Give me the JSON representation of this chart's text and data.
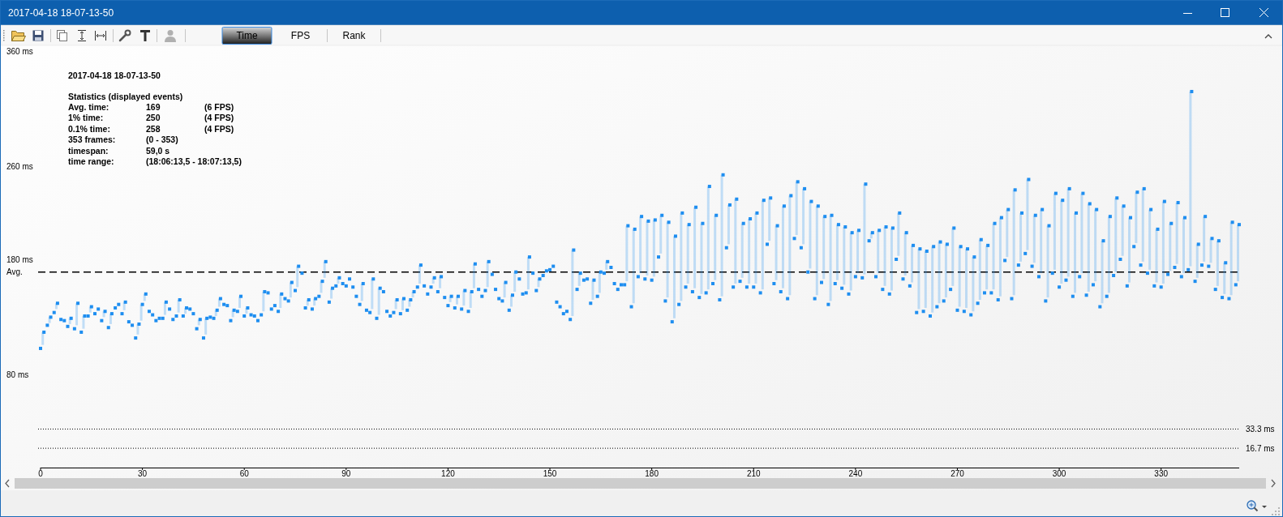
{
  "chart_data": {
    "type": "scatter",
    "title": "2017-04-18 18-07-13-50",
    "subtitle": "Statistics (displayed events)",
    "annotations": [
      "Avg. time:\t169\t(6 FPS)",
      "1% time:\t250\t(4 FPS)",
      "0.1% time:\t258\t(4 FPS)",
      "353 frames:\t(0 - 353)",
      "timespan:\t59,0 s",
      "time range:\t(18:06:13,5 - 18:07:13,5)",
      "2017-04-18 18-07-13-50",
      "Time",
      "FPS",
      "Rank"
    ],
    "x": [
      0,
      1,
      2,
      3,
      4,
      5,
      6,
      7,
      8,
      9,
      10,
      11,
      12,
      13,
      14,
      15,
      16,
      17,
      18,
      19,
      20,
      21,
      22,
      23,
      24,
      25,
      26,
      27,
      28,
      29,
      30,
      31,
      32,
      33,
      34,
      35,
      36,
      37,
      38,
      39,
      40,
      41,
      42,
      43,
      44,
      45,
      46,
      47,
      48,
      49,
      50,
      51,
      52,
      53,
      54,
      55,
      56,
      57,
      58,
      59,
      60,
      61,
      62,
      63,
      64,
      65,
      66,
      67,
      68,
      69,
      70,
      71,
      72,
      73,
      74,
      75,
      76,
      77,
      78,
      79,
      80,
      81,
      82,
      83,
      84,
      85,
      86,
      87,
      88,
      89,
      90,
      91,
      92,
      93,
      94,
      95,
      96,
      97,
      98,
      99,
      100,
      101,
      102,
      103,
      104,
      105,
      106,
      107,
      108,
      109,
      110,
      111,
      112,
      113,
      114,
      115,
      116,
      117,
      118,
      119,
      120,
      121,
      122,
      123,
      124,
      125,
      126,
      127,
      128,
      129,
      130,
      131,
      132,
      133,
      134,
      135,
      136,
      137,
      138,
      139,
      140,
      141,
      142,
      143,
      144,
      145,
      146,
      147,
      148,
      149,
      150,
      151,
      152,
      153,
      154,
      155,
      156,
      157,
      158,
      159,
      160,
      161,
      162,
      163,
      164,
      165,
      166,
      167,
      168,
      169,
      170,
      171,
      172,
      173,
      174,
      175,
      176,
      177,
      178,
      179,
      180,
      181,
      182,
      183,
      184,
      185,
      186,
      187,
      188,
      189,
      190,
      191,
      192,
      193,
      194,
      195,
      196,
      197,
      198,
      199,
      200,
      201,
      202,
      203,
      204,
      205,
      206,
      207,
      208,
      209,
      210,
      211,
      212,
      213,
      214,
      215,
      216,
      217,
      218,
      219,
      220,
      221,
      222,
      223,
      224,
      225,
      226,
      227,
      228,
      229,
      230,
      231,
      232,
      233,
      234,
      235,
      236,
      237,
      238,
      239,
      240,
      241,
      242,
      243,
      244,
      245,
      246,
      247,
      248,
      249,
      250,
      251,
      252,
      253,
      254,
      255,
      256,
      257,
      258,
      259,
      260,
      261,
      262,
      263,
      264,
      265,
      266,
      267,
      268,
      269,
      270,
      271,
      272,
      273,
      274,
      275,
      276,
      277,
      278,
      279,
      280,
      281,
      282,
      283,
      284,
      285,
      286,
      287,
      288,
      289,
      290,
      291,
      292,
      293,
      294,
      295,
      296,
      297,
      298,
      299,
      300,
      301,
      302,
      303,
      304,
      305,
      306,
      307,
      308,
      309,
      310,
      311,
      312,
      313,
      314,
      315,
      316,
      317,
      318,
      319,
      320,
      321,
      322,
      323,
      324,
      325,
      326,
      327,
      328,
      329,
      330,
      331,
      332,
      333,
      334,
      335,
      336,
      337,
      338,
      339,
      340,
      341,
      342,
      343,
      344,
      345,
      346,
      347,
      348,
      349,
      350,
      351,
      352,
      353
    ],
    "series": [
      {
        "color": "#1e8ef0",
        "values": [
          103,
          117,
          123,
          130,
          134,
          142,
          128,
          127,
          122,
          129,
          120,
          142,
          117,
          131,
          131,
          139,
          133,
          137,
          127,
          135,
          121,
          133,
          138,
          141,
          133,
          143,
          126,
          123,
          112,
          124,
          141,
          150,
          135,
          132,
          127,
          129,
          129,
          143,
          137,
          128,
          131,
          145,
          131,
          138,
          137,
          133,
          120,
          128,
          112,
          129,
          130,
          129,
          136,
          146,
          141,
          140,
          127,
          136,
          135,
          148,
          131,
          138,
          132,
          131,
          127,
          132,
          152,
          151,
          137,
          140,
          135,
          150,
          146,
          144,
          160,
          153,
          174,
          168,
          138,
          145,
          137,
          146,
          148,
          161,
          178,
          143,
          155,
          157,
          164,
          159,
          157,
          163,
          156,
          148,
          141,
          159,
          136,
          134,
          163,
          129,
          155,
          152,
          135,
          131,
          134,
          145,
          133,
          146,
          136,
          145,
          152,
          156,
          175,
          157,
          150,
          156,
          164,
          152,
          165,
          147,
          140,
          148,
          138,
          148,
          137,
          153,
          135,
          152,
          176,
          154,
          148,
          153,
          178,
          167,
          154,
          146,
          144,
          160,
          136,
          149,
          169,
          163,
          150,
          151,
          182,
          168,
          153,
          163,
          166,
          170,
          171,
          174,
          143,
          139,
          133,
          135,
          128,
          188,
          154,
          168,
          162,
          163,
          142,
          162,
          148,
          169,
          168,
          178,
          173,
          159,
          154,
          158,
          158,
          209,
          139,
          206,
          165,
          217,
          163,
          213,
          162,
          214,
          182,
          218,
          144,
          212,
          126,
          200,
          141,
          220,
          156,
          210,
          152,
          225,
          147,
          211,
          151,
          243,
          159,
          218,
          145,
          253,
          190,
          227,
          156,
          232,
          161,
          211,
          156,
          215,
          156,
          220,
          151,
          231,
          193,
          233,
          159,
          209,
          152,
          226,
          146,
          235,
          198,
          247,
          190,
          241,
          169,
          230,
          146,
          226,
          160,
          217,
          141,
          218,
          159,
          210,
          155,
          208,
          150,
          203,
          165,
          205,
          164,
          245,
          196,
          203,
          165,
          205,
          154,
          208,
          150,
          207,
          180,
          220,
          163,
          203,
          157,
          192,
          134,
          189,
          135,
          187,
          131,
          191,
          139,
          195,
          144,
          193,
          154,
          207,
          136,
          191,
          135,
          189,
          132,
          182,
          142,
          197,
          151,
          192,
          151,
          211,
          145,
          216,
          179,
          223,
          146,
          240,
          175,
          220,
          185,
          249,
          174,
          218,
          165,
          223,
          144,
          209,
          168,
          237,
          156,
          231,
          162,
          241,
          148,
          220,
          165,
          237,
          149,
          228,
          158,
          223,
          139,
          196,
          148,
          217,
          166,
          233,
          180,
          226,
          157,
          216,
          191,
          238,
          175,
          241,
          168,
          223,
          157,
          206,
          156,
          230,
          167,
          211,
          173,
          229,
          165,
          216,
          171,
          325,
          161,
          193,
          175,
          217,
          174,
          198,
          154,
          196,
          147,
          177,
          146,
          212,
          158,
          210
        ],
        "errors": [
          null,
          [
            106,
            117
          ],
          null,
          [
            125,
            130
          ],
          null,
          [
            137,
            142
          ],
          null,
          null,
          null,
          [
            124,
            129
          ],
          null,
          [
            123,
            142
          ],
          null,
          [
            120,
            131
          ],
          null,
          [
            134,
            139
          ],
          null,
          null,
          null,
          [
            130,
            135
          ],
          null,
          [
            124,
            133
          ],
          null,
          null,
          null,
          [
            136,
            143
          ],
          null,
          null,
          null,
          [
            115,
            124
          ],
          [
            127,
            141
          ],
          [
            144,
            150
          ],
          null,
          null,
          null,
          null,
          null,
          [
            132,
            143
          ],
          null,
          null,
          null,
          [
            134,
            145
          ],
          null,
          [
            133,
            138
          ],
          null,
          null,
          null,
          [
            123,
            128
          ],
          null,
          [
            115,
            129
          ],
          null,
          null,
          [
            131,
            136
          ],
          [
            139,
            146
          ],
          null,
          null,
          null,
          [
            130,
            136
          ],
          null,
          [
            138,
            148
          ],
          null,
          [
            133,
            138
          ],
          null,
          null,
          null,
          null,
          [
            135,
            152
          ],
          null,
          null,
          null,
          null,
          [
            138,
            150
          ],
          null,
          null,
          [
            147,
            160
          ],
          null,
          [
            156,
            174
          ],
          null,
          null,
          [
            140,
            145
          ],
          null,
          [
            140,
            146
          ],
          null,
          [
            151,
            161
          ],
          [
            164,
            178
          ],
          null,
          [
            146,
            155
          ],
          null,
          [
            159,
            164
          ],
          null,
          null,
          null,
          null,
          null,
          null,
          [
            144,
            159
          ],
          null,
          null,
          [
            137,
            163
          ],
          null,
          [
            132,
            155
          ],
          null,
          null,
          null,
          null,
          [
            137,
            145
          ],
          null,
          [
            136,
            146
          ],
          null,
          [
            139,
            145
          ],
          [
            147,
            152
          ],
          null,
          [
            159,
            175
          ],
          null,
          null,
          null,
          [
            159,
            164
          ],
          null,
          [
            155,
            165
          ],
          null,
          null,
          [
            143,
            148
          ],
          null,
          [
            141,
            148
          ],
          null,
          [
            140,
            153
          ],
          null,
          [
            138,
            152
          ],
          [
            155,
            176
          ],
          null,
          null,
          null,
          [
            156,
            178
          ],
          null,
          null,
          null,
          null,
          [
            147,
            160
          ],
          null,
          [
            139,
            149
          ],
          [
            152,
            169
          ],
          null,
          null,
          null,
          [
            154,
            182
          ],
          null,
          null,
          [
            156,
            163
          ],
          null,
          null,
          null,
          null,
          null,
          null,
          null,
          null,
          null,
          [
            131,
            188
          ],
          null,
          [
            157,
            168
          ],
          null,
          null,
          null,
          [
            145,
            162
          ],
          null,
          [
            151,
            169
          ],
          null,
          [
            171,
            178
          ],
          null,
          null,
          null,
          null,
          null,
          [
            161,
            209
          ],
          null,
          [
            142,
            206
          ],
          null,
          [
            168,
            217
          ],
          null,
          [
            166,
            213
          ],
          null,
          [
            165,
            214
          ],
          null,
          [
            185,
            218
          ],
          null,
          [
            147,
            212
          ],
          null,
          [
            129,
            200
          ],
          null,
          [
            144,
            220
          ],
          null,
          [
            159,
            210
          ],
          null,
          [
            155,
            225
          ],
          null,
          [
            150,
            211
          ],
          null,
          [
            154,
            243
          ],
          null,
          [
            162,
            218
          ],
          null,
          [
            148,
            253
          ],
          null,
          [
            193,
            227
          ],
          null,
          [
            159,
            232
          ],
          null,
          [
            164,
            211
          ],
          null,
          [
            159,
            215
          ],
          null,
          [
            159,
            220
          ],
          null,
          [
            154,
            231
          ],
          null,
          [
            196,
            233
          ],
          null,
          [
            162,
            209
          ],
          null,
          [
            155,
            226
          ],
          null,
          [
            149,
            235
          ],
          null,
          [
            201,
            247
          ],
          null,
          [
            193,
            241
          ],
          null,
          [
            172,
            230
          ],
          null,
          [
            149,
            226
          ],
          null,
          [
            163,
            217
          ],
          null,
          [
            144,
            218
          ],
          null,
          [
            162,
            210
          ],
          null,
          [
            158,
            208
          ],
          null,
          [
            153,
            203
          ],
          null,
          [
            168,
            205
          ],
          null,
          [
            167,
            245
          ],
          null,
          [
            198,
            203
          ],
          null,
          [
            168,
            205
          ],
          null,
          [
            157,
            208
          ],
          null,
          [
            153,
            207
          ],
          null,
          [
            183,
            220
          ],
          null,
          [
            166,
            203
          ],
          null,
          [
            160,
            192
          ],
          null,
          [
            137,
            189
          ],
          null,
          [
            138,
            187
          ],
          null,
          [
            134,
            191
          ],
          null,
          [
            142,
            195
          ],
          null,
          [
            147,
            193
          ],
          null,
          [
            157,
            207
          ],
          null,
          [
            139,
            191
          ],
          null,
          [
            138,
            189
          ],
          null,
          [
            135,
            182
          ],
          null,
          [
            145,
            197
          ],
          null,
          [
            154,
            192
          ],
          null,
          [
            154,
            211
          ],
          null,
          [
            148,
            216
          ],
          null,
          [
            182,
            223
          ],
          null,
          [
            149,
            240
          ],
          null,
          [
            178,
            220
          ],
          null,
          [
            188,
            249
          ],
          null,
          [
            177,
            218
          ],
          null,
          [
            168,
            223
          ],
          null,
          [
            147,
            209
          ],
          null,
          [
            171,
            237
          ],
          null,
          [
            159,
            231
          ],
          null,
          [
            165,
            241
          ],
          null,
          [
            151,
            220
          ],
          null,
          [
            168,
            237
          ],
          null,
          [
            152,
            228
          ],
          null,
          [
            161,
            223
          ],
          null,
          [
            142,
            196
          ],
          null,
          [
            151,
            217
          ],
          null,
          [
            169,
            233
          ],
          null,
          [
            183,
            226
          ],
          null,
          [
            160,
            216
          ],
          null,
          [
            194,
            238
          ],
          null,
          [
            178,
            241
          ],
          null,
          [
            171,
            223
          ],
          null,
          [
            160,
            206
          ],
          null,
          [
            159,
            230
          ],
          null,
          [
            170,
            211
          ],
          null,
          [
            176,
            229
          ],
          null,
          [
            168,
            216
          ],
          null,
          [
            174,
            325
          ],
          null,
          [
            164,
            193
          ],
          null,
          [
            178,
            217
          ],
          null,
          [
            177,
            198
          ],
          null,
          [
            157,
            196
          ],
          null,
          [
            150,
            177
          ],
          null,
          [
            149,
            212
          ],
          null,
          [
            161,
            210
          ]
        ]
      }
    ],
    "marker": "square",
    "xlim": [
      0,
      353
    ],
    "xticks": [
      0,
      30,
      60,
      90,
      120,
      150,
      180,
      210,
      240,
      270,
      300,
      330
    ],
    "ylim": [
      0,
      360
    ],
    "yticks": [
      {
        "value": 80,
        "label": "80 ms"
      },
      {
        "value": 180,
        "label": "180 ms"
      },
      {
        "value": 260,
        "label": "260 ms"
      },
      {
        "value": 360,
        "label": "360 ms"
      }
    ],
    "ref_lines": [
      {
        "axis": "y",
        "value": 169,
        "label": "Avg.",
        "color": "#000000",
        "line_style": "dashed"
      },
      {
        "axis": "y",
        "value": 33.3,
        "label": "33.3 ms",
        "color": "#000000",
        "line_style": "dotted"
      },
      {
        "axis": "y",
        "value": 16.7,
        "label": "16.7 ms",
        "color": "#000000",
        "line_style": "dotted"
      }
    ]
  }
}
